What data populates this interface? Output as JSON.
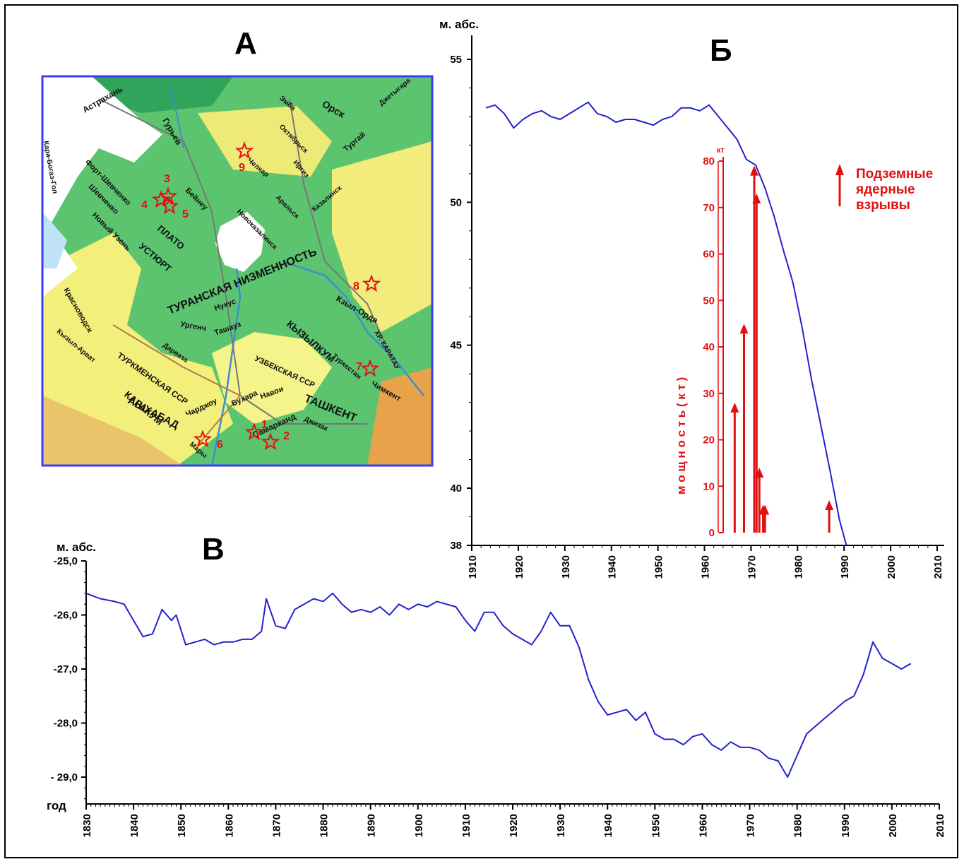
{
  "panels": {
    "map_letter": "А",
    "chart_b_letter": "Б",
    "chart_v_letter": "В"
  },
  "map": {
    "place_labels": [
      "Астрахань",
      "Гурьев",
      "Форт-Шевченко",
      "Шевченко",
      "Новый Узень",
      "ПЛАТО",
      "УСТЮРТ",
      "Бейнеу",
      "Челкар",
      "Октябрьск",
      "Орск",
      "Иргиз",
      "Тургай",
      "Аральск",
      "Новоказалинск",
      "ТУРАНСКАЯ НИЗМЕННОСТЬ",
      "Кзыл-Орда",
      "КЫЗЫЛКУМ",
      "Нукус",
      "Ургенч",
      "Ташауз",
      "УЗБЕКСКАЯ ССР",
      "ТУРКМЕНСКАЯ ССР",
      "КАРАКУМ",
      "Бухара",
      "Навои",
      "ТАШКЕНТ",
      "Чимкент",
      "Туркестан",
      "Чарджоу",
      "Самарканд",
      "АШХАБАД",
      "Мары",
      "Джизак",
      "ХР. КАРАТАУ",
      "Красноводск",
      "Кызыл-Арват",
      "Дарвaза",
      "Кара-Богаз-Гол",
      "Джетыгара",
      "Эмба",
      "Казалинск"
    ],
    "sites": [
      {
        "id": "1",
        "color": "#e01010"
      },
      {
        "id": "2",
        "color": "#e01010"
      },
      {
        "id": "3",
        "color": "#e01010"
      },
      {
        "id": "4",
        "color": "#e01010"
      },
      {
        "id": "5",
        "color": "#e01010"
      },
      {
        "id": "6",
        "color": "#e01010"
      },
      {
        "id": "7",
        "color": "#e01010"
      },
      {
        "id": "8",
        "color": "#e01010"
      },
      {
        "id": "9",
        "color": "#e01010"
      }
    ]
  },
  "chart_data": [
    {
      "type": "line",
      "id": "aral_sea_level",
      "ylabel": "м. абс.",
      "xlim": [
        1910,
        2010
      ],
      "ylim": [
        38,
        55
      ],
      "xticks": [
        "1910",
        "1920",
        "1930",
        "1940",
        "1950",
        "1960",
        "1970",
        "1980",
        "1990",
        "2000",
        "2010"
      ],
      "yticks": [
        "55",
        "50",
        "45",
        "40",
        "38"
      ],
      "line_color": "#2222cc",
      "x": [
        1913,
        1915,
        1917,
        1919,
        1921,
        1923,
        1925,
        1927,
        1929,
        1931,
        1933,
        1935,
        1937,
        1939,
        1941,
        1943,
        1945,
        1947,
        1949,
        1951,
        1953,
        1955,
        1957,
        1959,
        1961,
        1963,
        1965,
        1967,
        1969,
        1971,
        1973,
        1975,
        1977,
        1979,
        1981,
        1983,
        1985,
        1987,
        1989,
        1990.5
      ],
      "y": [
        53.3,
        53.4,
        53.1,
        52.6,
        52.9,
        53.1,
        53.2,
        53.0,
        52.9,
        53.1,
        53.3,
        53.5,
        53.1,
        53.0,
        52.8,
        52.9,
        52.9,
        52.8,
        52.7,
        52.9,
        53.0,
        53.3,
        53.3,
        53.2,
        53.4,
        53.0,
        52.6,
        52.2,
        51.5,
        51.3,
        50.5,
        49.5,
        48.3,
        47.2,
        45.6,
        43.8,
        42.2,
        40.6,
        38.9,
        38.0
      ]
    },
    {
      "type": "bar",
      "id": "nuclear_explosions",
      "ylabel": "м о щ н о с т ь   ( к т )",
      "yunit": "кт",
      "ylim": [
        0,
        80
      ],
      "yticks": [
        "80",
        "70",
        "60",
        "50",
        "40",
        "30",
        "20",
        "10",
        "0"
      ],
      "legend_label": "Подземные ядерные взрывы",
      "legend_position": "right",
      "color": "#e01010",
      "x": [
        1966.5,
        1968.5,
        1970.7,
        1971.2,
        1971.8,
        1972.6,
        1973.0,
        1986.8
      ],
      "values": [
        28,
        45,
        79,
        73,
        14,
        6,
        6,
        7
      ]
    },
    {
      "type": "line",
      "id": "caspian_sea_level",
      "ylabel": "м. абс.",
      "xlabel": "год",
      "xlim": [
        1830,
        2010
      ],
      "ylim": [
        -29.5,
        -25.0
      ],
      "xticks": [
        "1830",
        "1840",
        "1850",
        "1860",
        "1870",
        "1880",
        "1890",
        "1900",
        "1910",
        "1920",
        "1930",
        "1940",
        "1950",
        "1960",
        "1970",
        "1980",
        "1990",
        "2000",
        "2010"
      ],
      "yticks": [
        "-25,0",
        "-26,0",
        "-27,0",
        "-28,0",
        "- 29,0"
      ],
      "yticks_values": [
        -25,
        -26,
        -27,
        -28,
        -29
      ],
      "line_color": "#2222cc",
      "x": [
        1830,
        1833,
        1836,
        1838,
        1840,
        1842,
        1844,
        1846,
        1848,
        1849,
        1851,
        1853,
        1855,
        1857,
        1859,
        1861,
        1863,
        1865,
        1867,
        1868,
        1870,
        1872,
        1874,
        1876,
        1878,
        1880,
        1882,
        1884,
        1886,
        1888,
        1890,
        1892,
        1894,
        1896,
        1898,
        1900,
        1902,
        1904,
        1906,
        1908,
        1910,
        1912,
        1914,
        1916,
        1918,
        1920,
        1922,
        1924,
        1926,
        1928,
        1930,
        1932,
        1934,
        1936,
        1938,
        1940,
        1942,
        1944,
        1946,
        1948,
        1950,
        1952,
        1954,
        1956,
        1958,
        1960,
        1962,
        1964,
        1966,
        1968,
        1970,
        1972,
        1974,
        1976,
        1978,
        1980,
        1982,
        1984,
        1986,
        1988,
        1990,
        1992,
        1994,
        1996,
        1998,
        2000,
        2002,
        2004
      ],
      "y": [
        -25.6,
        -25.7,
        -25.75,
        -25.8,
        -26.1,
        -26.4,
        -26.35,
        -25.9,
        -26.1,
        -26.0,
        -26.55,
        -26.5,
        -26.45,
        -26.55,
        -26.5,
        -26.5,
        -26.45,
        -26.45,
        -26.3,
        -25.7,
        -26.2,
        -26.25,
        -25.9,
        -25.8,
        -25.7,
        -25.75,
        -25.6,
        -25.8,
        -25.95,
        -25.9,
        -25.95,
        -25.85,
        -26.0,
        -25.8,
        -25.9,
        -25.8,
        -25.85,
        -25.75,
        -25.8,
        -25.85,
        -26.1,
        -26.3,
        -25.95,
        -25.95,
        -26.2,
        -26.35,
        -26.45,
        -26.55,
        -26.3,
        -25.95,
        -26.2,
        -26.2,
        -26.6,
        -27.2,
        -27.6,
        -27.85,
        -27.8,
        -27.75,
        -27.95,
        -27.8,
        -28.2,
        -28.3,
        -28.3,
        -28.4,
        -28.25,
        -28.2,
        -28.4,
        -28.5,
        -28.35,
        -28.45,
        -28.45,
        -28.5,
        -28.65,
        -28.7,
        -29.0,
        -28.6,
        -28.2,
        -28.05,
        -27.9,
        -27.75,
        -27.6,
        -27.5,
        -27.1,
        -26.5,
        -26.8,
        -26.9,
        -27.0,
        -26.9
      ]
    }
  ]
}
